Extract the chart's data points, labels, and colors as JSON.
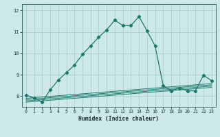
{
  "title": "",
  "xlabel": "Humidex (Indice chaleur)",
  "bg_color": "#cce8e8",
  "grid_color": "#aacfcf",
  "line_color": "#1a7a6a",
  "x": [
    0,
    1,
    2,
    3,
    4,
    5,
    6,
    7,
    8,
    9,
    10,
    11,
    12,
    13,
    14,
    15,
    16,
    17,
    18,
    19,
    20,
    21,
    22,
    23
  ],
  "main_line": [
    8.05,
    7.92,
    7.72,
    8.3,
    8.75,
    9.1,
    9.45,
    9.95,
    10.35,
    10.75,
    11.1,
    11.55,
    11.3,
    11.3,
    11.72,
    11.05,
    10.35,
    8.5,
    8.25,
    8.38,
    8.25,
    8.25,
    8.98,
    8.72
  ],
  "flat_line1": [
    7.72,
    7.75,
    7.78,
    7.81,
    7.84,
    7.87,
    7.9,
    7.93,
    7.96,
    7.99,
    8.02,
    8.05,
    8.08,
    8.11,
    8.14,
    8.17,
    8.2,
    8.23,
    8.26,
    8.29,
    8.32,
    8.35,
    8.38,
    8.41
  ],
  "flat_line2": [
    7.78,
    7.81,
    7.84,
    7.87,
    7.9,
    7.93,
    7.96,
    7.99,
    8.02,
    8.05,
    8.08,
    8.11,
    8.14,
    8.17,
    8.2,
    8.23,
    8.26,
    8.29,
    8.32,
    8.35,
    8.38,
    8.41,
    8.44,
    8.47
  ],
  "flat_line3": [
    7.84,
    7.87,
    7.9,
    7.93,
    7.96,
    7.99,
    8.02,
    8.05,
    8.08,
    8.11,
    8.14,
    8.17,
    8.2,
    8.23,
    8.26,
    8.29,
    8.32,
    8.35,
    8.38,
    8.41,
    8.44,
    8.47,
    8.5,
    8.53
  ],
  "flat_line4": [
    7.9,
    7.93,
    7.96,
    7.99,
    8.02,
    8.05,
    8.08,
    8.11,
    8.14,
    8.17,
    8.2,
    8.23,
    8.26,
    8.29,
    8.32,
    8.35,
    8.38,
    8.41,
    8.44,
    8.47,
    8.5,
    8.53,
    8.56,
    8.59
  ],
  "ylim": [
    7.5,
    12.3
  ],
  "yticks": [
    8,
    9,
    10,
    11,
    12
  ],
  "xticks": [
    0,
    1,
    2,
    3,
    4,
    5,
    6,
    7,
    8,
    9,
    10,
    11,
    12,
    13,
    14,
    15,
    16,
    17,
    18,
    19,
    20,
    21,
    22,
    23
  ]
}
